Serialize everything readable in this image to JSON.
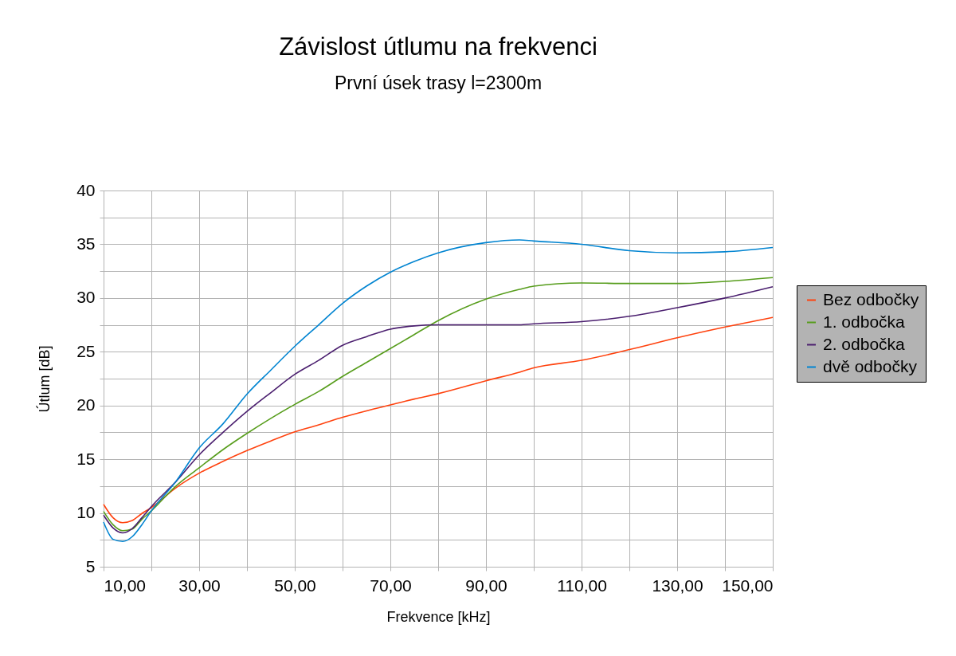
{
  "chart_data": {
    "type": "line",
    "title": "Závislost útlumu na frekvenci",
    "subtitle": "První úsek trasy l=2300m",
    "xlabel": "Frekvence [kHz]",
    "ylabel": "Útlum [dB]",
    "xlim": [
      10,
      150
    ],
    "ylim": [
      5,
      40
    ],
    "xticks": [
      {
        "value": 10,
        "label": "10,00"
      },
      {
        "value": 20,
        "label": null
      },
      {
        "value": 30,
        "label": "30,00"
      },
      {
        "value": 40,
        "label": null
      },
      {
        "value": 50,
        "label": "50,00"
      },
      {
        "value": 60,
        "label": null
      },
      {
        "value": 70,
        "label": "70,00"
      },
      {
        "value": 80,
        "label": null
      },
      {
        "value": 90,
        "label": "90,00"
      },
      {
        "value": 100,
        "label": null
      },
      {
        "value": 110,
        "label": "110,00"
      },
      {
        "value": 120,
        "label": null
      },
      {
        "value": 130,
        "label": "130,00"
      },
      {
        "value": 140,
        "label": null
      },
      {
        "value": 150,
        "label": "150,00"
      }
    ],
    "yticks": [
      5,
      {
        "value": 7.5,
        "label": null
      },
      10,
      {
        "value": 12.5,
        "label": null
      },
      15,
      {
        "value": 17.5,
        "label": null
      },
      20,
      {
        "value": 22.5,
        "label": null
      },
      25,
      {
        "value": 27.5,
        "label": null
      },
      30,
      {
        "value": 32.5,
        "label": null
      },
      35,
      {
        "value": 37.5,
        "label": null
      },
      40
    ],
    "grid": true,
    "legend": "right",
    "line_style": "solid",
    "x": [
      10,
      12,
      14,
      16,
      18,
      20,
      25,
      30,
      35,
      40,
      45,
      50,
      55,
      60,
      65,
      70,
      75,
      80,
      90,
      97,
      100,
      110,
      120,
      130,
      140,
      150
    ],
    "series": [
      {
        "name": "Bez odbočky",
        "color": "#ff420e",
        "values": [
          10.8,
          9.55,
          9.1,
          9.3,
          9.95,
          10.5,
          12.3,
          13.7,
          14.8,
          15.8,
          16.7,
          17.55,
          18.2,
          18.9,
          19.5,
          20.05,
          20.6,
          21.1,
          22.3,
          23.1,
          23.5,
          24.2,
          25.2,
          26.3,
          27.3,
          28.2
        ]
      },
      {
        "name": "1. odbočka",
        "color": "#579d1c",
        "values": [
          10.15,
          8.9,
          8.35,
          8.5,
          9.4,
          10.2,
          12.45,
          14.2,
          15.9,
          17.4,
          18.8,
          20.1,
          21.3,
          22.7,
          24.0,
          25.3,
          26.6,
          27.9,
          29.9,
          30.8,
          31.1,
          31.4,
          31.35,
          31.35,
          31.55,
          31.9
        ]
      },
      {
        "name": "2. odbočka",
        "color": "#4b1f6f",
        "values": [
          9.8,
          8.6,
          8.15,
          8.55,
          9.55,
          10.6,
          12.85,
          15.4,
          17.5,
          19.45,
          21.2,
          22.9,
          24.2,
          25.6,
          26.4,
          27.1,
          27.4,
          27.5,
          27.5,
          27.5,
          27.6,
          27.8,
          28.3,
          29.1,
          30.0,
          31.05
        ]
      },
      {
        "name": "dvě odbočky",
        "color": "#0084d1",
        "values": [
          9.15,
          7.55,
          7.35,
          7.8,
          8.9,
          10.2,
          12.85,
          16.05,
          18.3,
          21.05,
          23.3,
          25.5,
          27.5,
          29.5,
          31.1,
          32.4,
          33.4,
          34.2,
          35.15,
          35.4,
          35.3,
          35.0,
          34.4,
          34.2,
          34.3,
          34.7
        ]
      }
    ]
  }
}
